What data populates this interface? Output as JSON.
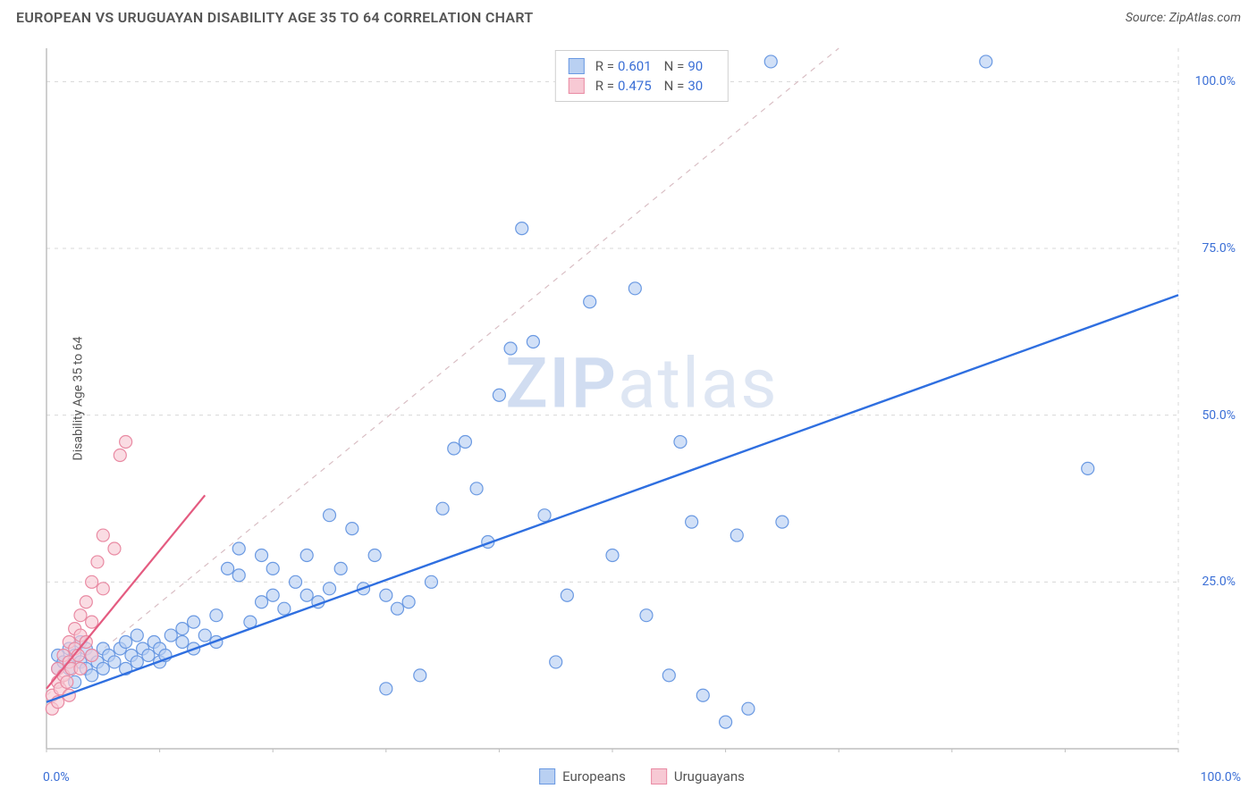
{
  "header": {
    "title": "EUROPEAN VS URUGUAYAN DISABILITY AGE 35 TO 64 CORRELATION CHART",
    "source_prefix": "Source: ",
    "source_name": "ZipAtlas.com"
  },
  "axes": {
    "ylabel": "Disability Age 35 to 64",
    "x_min_label": "0.0%",
    "x_max_label": "100.0%",
    "xlim": [
      0,
      100
    ],
    "ylim": [
      0,
      105
    ],
    "ytick_positions": [
      25,
      50,
      75,
      100
    ],
    "ytick_labels": [
      "25.0%",
      "50.0%",
      "75.0%",
      "100.0%"
    ],
    "xtick_positions": [
      0,
      10,
      20,
      30,
      40,
      50,
      60,
      70,
      80,
      90,
      100
    ],
    "grid_color": "#d8d8d8",
    "axis_color": "#bfbfbf",
    "tick_label_color": "#3b6fd6",
    "axis_label_color": "#555555",
    "background_color": "#ffffff"
  },
  "legend_top": {
    "series": [
      {
        "swatch_fill": "#b9d0f2",
        "swatch_stroke": "#6a99e2",
        "r_label": "R =",
        "r_value": "0.601",
        "n_label": "N =",
        "n_value": "90"
      },
      {
        "swatch_fill": "#f7c9d4",
        "swatch_stroke": "#e98aa3",
        "r_label": "R =",
        "r_value": "0.475",
        "n_label": "N =",
        "n_value": "30"
      }
    ]
  },
  "legend_bottom": {
    "items": [
      {
        "swatch_fill": "#b9d0f2",
        "swatch_stroke": "#6a99e2",
        "label": "Europeans"
      },
      {
        "swatch_fill": "#f7c9d4",
        "swatch_stroke": "#e98aa3",
        "label": "Uruguayans"
      }
    ]
  },
  "watermark": {
    "bold": "ZIP",
    "rest": "atlas"
  },
  "chart": {
    "type": "scatter",
    "marker_radius": 7,
    "marker_stroke_width": 1.2,
    "series": [
      {
        "name": "europeans",
        "fill": "#b9d0f2",
        "stroke": "#6a99e2",
        "fill_opacity": 0.65,
        "trend": {
          "x1": 0,
          "y1": 7,
          "x2": 100,
          "y2": 68,
          "color": "#2f6fe0",
          "width": 2.4,
          "dash": ""
        },
        "dashed_ref": {
          "x1": 0,
          "y1": 8,
          "x2": 70,
          "y2": 105,
          "color": "#d9bec4",
          "width": 1.2,
          "dash": "6,6"
        },
        "points": [
          [
            1,
            12
          ],
          [
            1,
            14
          ],
          [
            1.5,
            13
          ],
          [
            2,
            12
          ],
          [
            2,
            15
          ],
          [
            2.5,
            10
          ],
          [
            2.5,
            14
          ],
          [
            3,
            13
          ],
          [
            3,
            16
          ],
          [
            3.5,
            12
          ],
          [
            3.5,
            15
          ],
          [
            4,
            11
          ],
          [
            4,
            14
          ],
          [
            4.5,
            13
          ],
          [
            5,
            12
          ],
          [
            5,
            15
          ],
          [
            5.5,
            14
          ],
          [
            6,
            13
          ],
          [
            6.5,
            15
          ],
          [
            7,
            12
          ],
          [
            7,
            16
          ],
          [
            7.5,
            14
          ],
          [
            8,
            13
          ],
          [
            8,
            17
          ],
          [
            8.5,
            15
          ],
          [
            9,
            14
          ],
          [
            9.5,
            16
          ],
          [
            10,
            13
          ],
          [
            10,
            15
          ],
          [
            10.5,
            14
          ],
          [
            11,
            17
          ],
          [
            12,
            16
          ],
          [
            12,
            18
          ],
          [
            13,
            15
          ],
          [
            13,
            19
          ],
          [
            14,
            17
          ],
          [
            15,
            16
          ],
          [
            15,
            20
          ],
          [
            16,
            27
          ],
          [
            17,
            26
          ],
          [
            17,
            30
          ],
          [
            18,
            19
          ],
          [
            19,
            22
          ],
          [
            19,
            29
          ],
          [
            20,
            23
          ],
          [
            20,
            27
          ],
          [
            21,
            21
          ],
          [
            22,
            25
          ],
          [
            23,
            23
          ],
          [
            23,
            29
          ],
          [
            24,
            22
          ],
          [
            25,
            24
          ],
          [
            25,
            35
          ],
          [
            26,
            27
          ],
          [
            27,
            33
          ],
          [
            28,
            24
          ],
          [
            29,
            29
          ],
          [
            30,
            23
          ],
          [
            30,
            9
          ],
          [
            31,
            21
          ],
          [
            32,
            22
          ],
          [
            33,
            11
          ],
          [
            34,
            25
          ],
          [
            35,
            36
          ],
          [
            36,
            45
          ],
          [
            37,
            46
          ],
          [
            38,
            39
          ],
          [
            39,
            31
          ],
          [
            40,
            53
          ],
          [
            41,
            60
          ],
          [
            42,
            78
          ],
          [
            43,
            61
          ],
          [
            44,
            35
          ],
          [
            45,
            13
          ],
          [
            46,
            23
          ],
          [
            48,
            67
          ],
          [
            50,
            29
          ],
          [
            52,
            69
          ],
          [
            53,
            20
          ],
          [
            55,
            11
          ],
          [
            56,
            46
          ],
          [
            57,
            34
          ],
          [
            58,
            8
          ],
          [
            60,
            4
          ],
          [
            61,
            32
          ],
          [
            62,
            6
          ],
          [
            64,
            103
          ],
          [
            65,
            34
          ],
          [
            83,
            103
          ],
          [
            92,
            42
          ]
        ]
      },
      {
        "name": "uruguayans",
        "fill": "#f7c9d4",
        "stroke": "#e98aa3",
        "fill_opacity": 0.65,
        "trend": {
          "x1": 0,
          "y1": 9,
          "x2": 14,
          "y2": 38,
          "color": "#e45b80",
          "width": 2.2,
          "dash": ""
        },
        "points": [
          [
            0.5,
            6
          ],
          [
            0.5,
            8
          ],
          [
            1,
            7
          ],
          [
            1,
            10
          ],
          [
            1,
            12
          ],
          [
            1.2,
            9
          ],
          [
            1.5,
            11
          ],
          [
            1.5,
            14
          ],
          [
            1.8,
            10
          ],
          [
            2,
            13
          ],
          [
            2,
            16
          ],
          [
            2,
            8
          ],
          [
            2.2,
            12
          ],
          [
            2.5,
            15
          ],
          [
            2.5,
            18
          ],
          [
            2.8,
            14
          ],
          [
            3,
            20
          ],
          [
            3,
            12
          ],
          [
            3,
            17
          ],
          [
            3.5,
            22
          ],
          [
            3.5,
            16
          ],
          [
            4,
            25
          ],
          [
            4,
            19
          ],
          [
            4,
            14
          ],
          [
            4.5,
            28
          ],
          [
            5,
            24
          ],
          [
            5,
            32
          ],
          [
            6,
            30
          ],
          [
            6.5,
            44
          ],
          [
            7,
            46
          ]
        ]
      }
    ]
  },
  "typography": {
    "title_fontsize": 16,
    "source_fontsize": 14,
    "axis_label_fontsize": 14,
    "tick_fontsize": 14,
    "legend_fontsize": 15
  }
}
